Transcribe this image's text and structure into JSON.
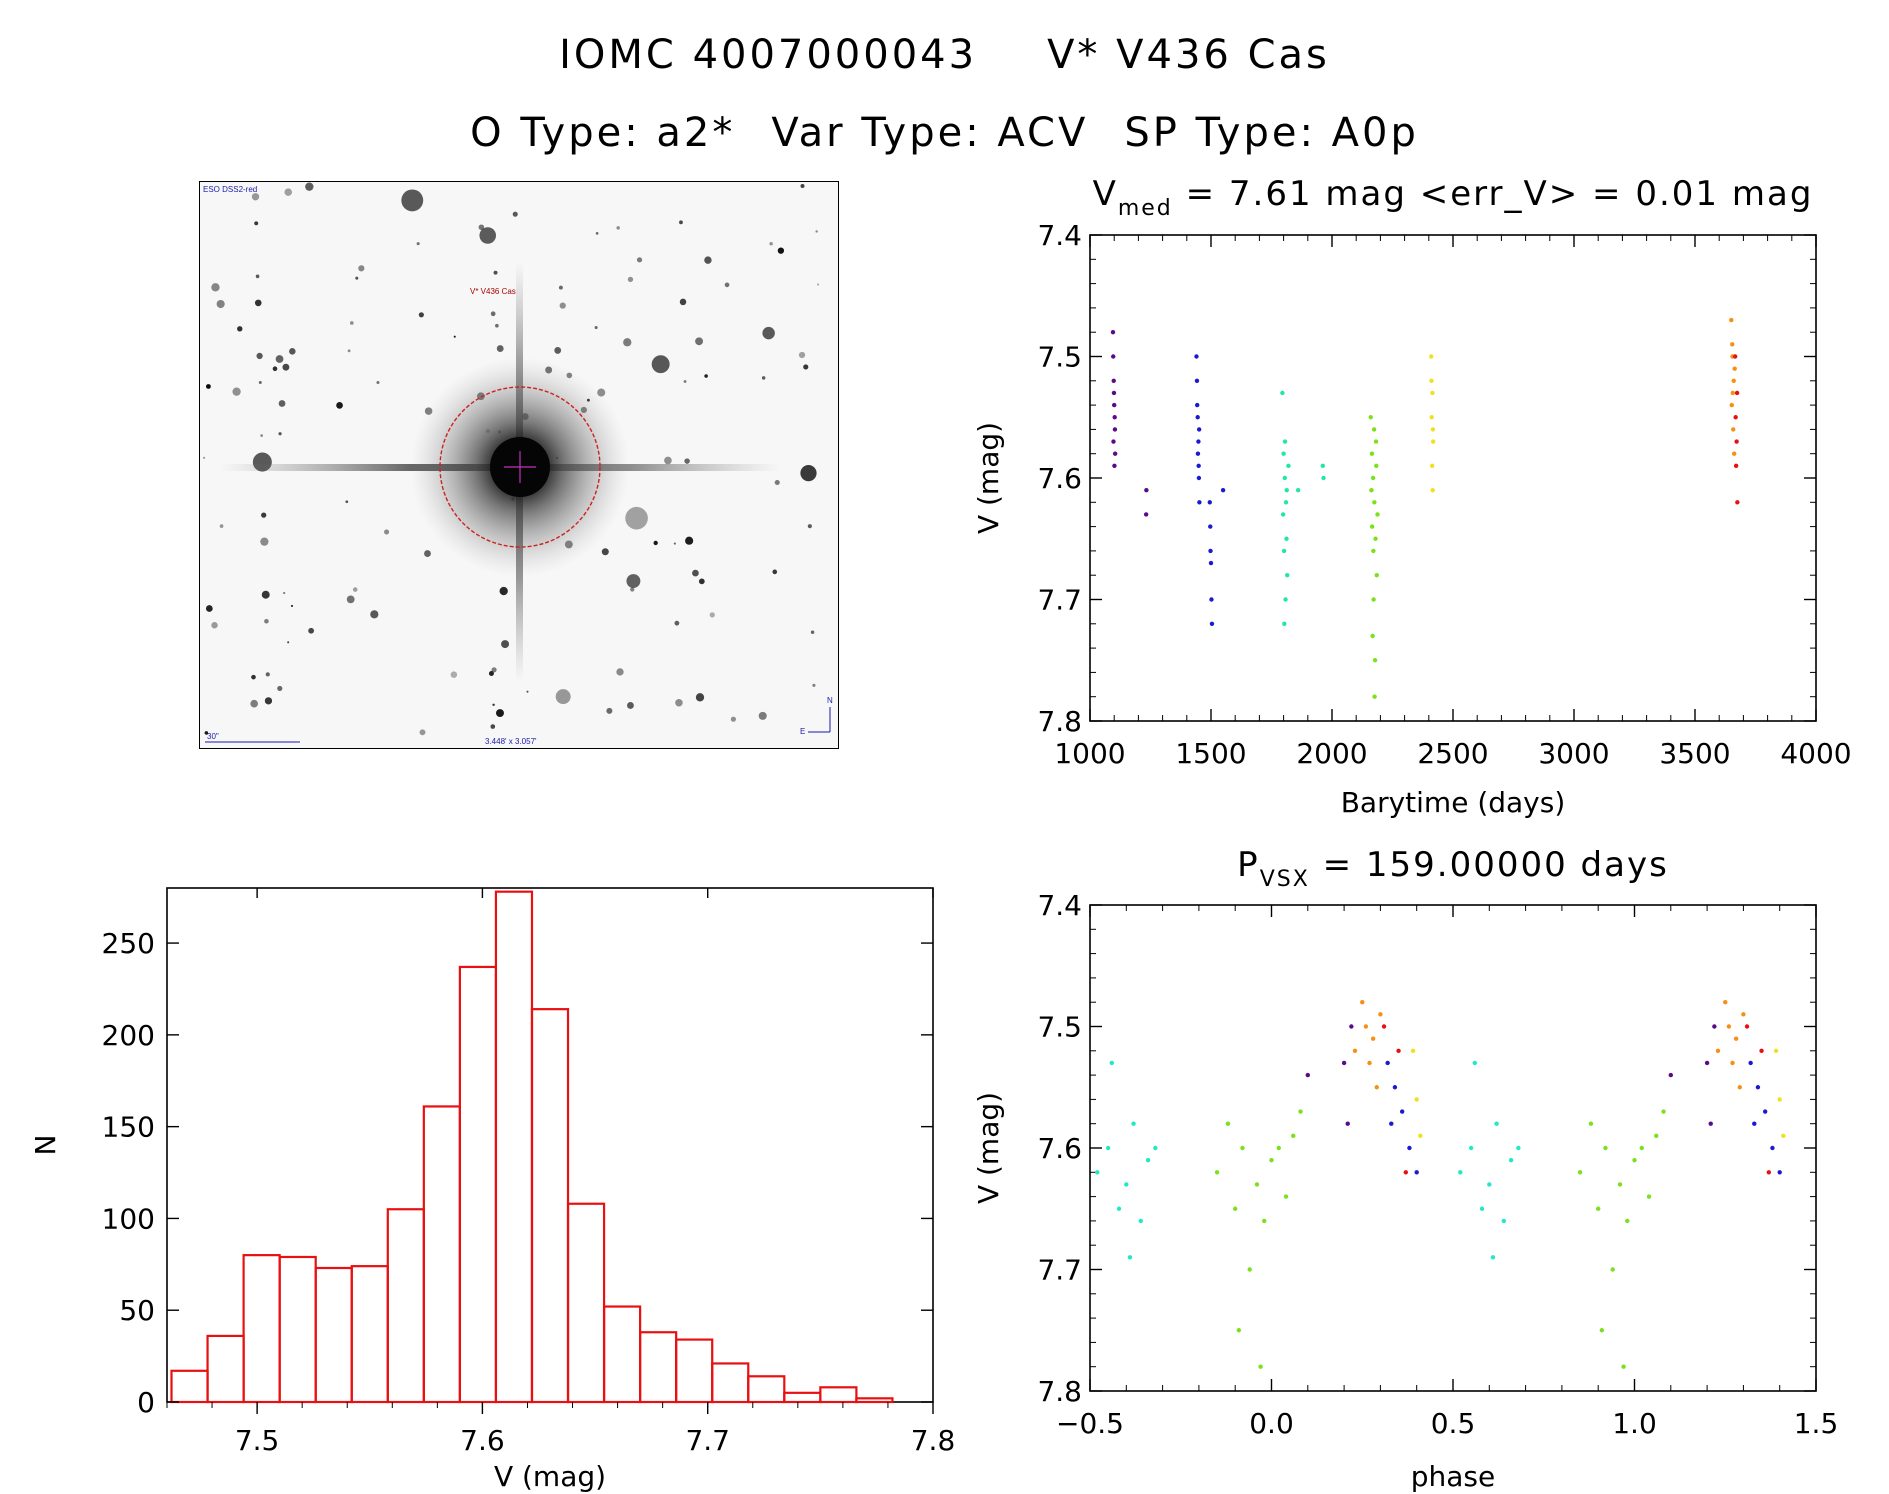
{
  "header": {
    "line1_left": "IOMC 4007000043",
    "line1_right": "V* V436 Cas",
    "otype": "O Type: a2*",
    "vartype": "Var Type: ACV",
    "sptype": "SP Type: A0p"
  },
  "finder": {
    "survey": "ESO DSS2-red",
    "object_label": "V* V436 Cas",
    "scale_label": "30\"",
    "fov_label": "3.448' x 3.057'",
    "compass_n": "N",
    "compass_e": "E",
    "colors": {
      "circle": "#cc2222",
      "label": "#aa0000",
      "text": "#1a1aaa"
    }
  },
  "chart_data": [
    {
      "id": "lightcurve",
      "type": "scatter",
      "title_main": "V",
      "title_sub": "med",
      "title_rest": " = 7.61 mag <err_V> = 0.01 mag",
      "xlabel": "Barytime (days)",
      "ylabel": "V (mag)",
      "xlim": [
        1000,
        4000
      ],
      "ylim": [
        7.8,
        7.4
      ],
      "xticks": [
        1000,
        1500,
        2000,
        2500,
        3000,
        3500,
        4000
      ],
      "xticklabels": [
        "1000",
        "1500",
        "2000",
        "2500",
        "3000",
        "3500",
        "4000"
      ],
      "yticks": [
        7.4,
        7.5,
        7.6,
        7.7,
        7.8
      ],
      "yticklabels": [
        "7.4",
        "7.5",
        "7.6",
        "7.7",
        "7.8"
      ],
      "series": [
        {
          "color": "#5a0a8a",
          "points": [
            [
              1095,
              7.48
            ],
            [
              1098,
              7.52
            ],
            [
              1100,
              7.54
            ],
            [
              1102,
              7.55
            ],
            [
              1097,
              7.57
            ],
            [
              1101,
              7.59
            ],
            [
              1099,
              7.53
            ],
            [
              1103,
              7.56
            ],
            [
              1096,
              7.5
            ],
            [
              1104,
              7.58
            ],
            [
              1233,
              7.61
            ],
            [
              1232,
              7.63
            ]
          ]
        },
        {
          "color": "#1a1ad0",
          "points": [
            [
              1440,
              7.5
            ],
            [
              1442,
              7.52
            ],
            [
              1445,
              7.55
            ],
            [
              1448,
              7.57
            ],
            [
              1450,
              7.6
            ],
            [
              1452,
              7.62
            ],
            [
              1446,
              7.58
            ],
            [
              1443,
              7.54
            ],
            [
              1449,
              7.59
            ],
            [
              1451,
              7.56
            ],
            [
              1495,
              7.62
            ],
            [
              1497,
              7.64
            ],
            [
              1500,
              7.67
            ],
            [
              1502,
              7.7
            ],
            [
              1504,
              7.72
            ],
            [
              1498,
              7.66
            ],
            [
              1550,
              7.61
            ]
          ]
        },
        {
          "color": "#20e8a0",
          "points": [
            [
              1795,
              7.53
            ],
            [
              1800,
              7.58
            ],
            [
              1805,
              7.6
            ],
            [
              1810,
              7.62
            ],
            [
              1812,
              7.65
            ],
            [
              1815,
              7.68
            ],
            [
              1808,
              7.7
            ],
            [
              1803,
              7.72
            ],
            [
              1798,
              7.63
            ],
            [
              1806,
              7.57
            ],
            [
              1813,
              7.61
            ],
            [
              1820,
              7.59
            ],
            [
              1802,
              7.66
            ],
            [
              1860,
              7.61
            ],
            [
              1962,
              7.59
            ],
            [
              1965,
              7.6
            ]
          ]
        },
        {
          "color": "#7ce01a",
          "points": [
            [
              2160,
              7.55
            ],
            [
              2165,
              7.58
            ],
            [
              2170,
              7.6
            ],
            [
              2175,
              7.62
            ],
            [
              2180,
              7.65
            ],
            [
              2185,
              7.68
            ],
            [
              2172,
              7.7
            ],
            [
              2168,
              7.73
            ],
            [
              2178,
              7.75
            ],
            [
              2176,
              7.78
            ],
            [
              2182,
              7.57
            ],
            [
              2163,
              7.61
            ],
            [
              2188,
              7.63
            ],
            [
              2171,
              7.66
            ],
            [
              2183,
              7.59
            ],
            [
              2166,
              7.64
            ],
            [
              2174,
              7.56
            ]
          ]
        },
        {
          "color": "#f0e020",
          "points": [
            [
              2410,
              7.5
            ],
            [
              2415,
              7.53
            ],
            [
              2412,
              7.55
            ],
            [
              2418,
              7.57
            ],
            [
              2414,
              7.59
            ],
            [
              2416,
              7.61
            ],
            [
              2411,
              7.52
            ],
            [
              2417,
              7.56
            ]
          ]
        },
        {
          "color": "#f59010",
          "points": [
            [
              3650,
              7.47
            ],
            [
              3655,
              7.5
            ],
            [
              3660,
              7.52
            ],
            [
              3652,
              7.54
            ],
            [
              3658,
              7.56
            ],
            [
              3662,
              7.58
            ],
            [
              3654,
              7.49
            ],
            [
              3664,
              7.51
            ],
            [
              3656,
              7.53
            ]
          ]
        },
        {
          "color": "#e81010",
          "points": [
            [
              3668,
              7.55
            ],
            [
              3672,
              7.57
            ],
            [
              3670,
              7.59
            ],
            [
              3675,
              7.62
            ],
            [
              3666,
              7.5
            ],
            [
              3674,
              7.53
            ]
          ]
        }
      ]
    },
    {
      "id": "histogram",
      "type": "bar",
      "xlabel": "V (mag)",
      "ylabel": "N",
      "xlim": [
        7.46,
        7.8
      ],
      "ylim": [
        0,
        280
      ],
      "xticks": [
        7.5,
        7.6,
        7.7,
        7.8
      ],
      "xticklabels": [
        "7.5",
        "7.6",
        "7.7",
        "7.8"
      ],
      "yticks": [
        0,
        50,
        100,
        150,
        200,
        250
      ],
      "yticklabels": [
        "0",
        "50",
        "100",
        "150",
        "200",
        "250"
      ],
      "bin_width": 0.016,
      "bin_starts": [
        7.462,
        7.478,
        7.494,
        7.51,
        7.526,
        7.542,
        7.558,
        7.574,
        7.59,
        7.606,
        7.622,
        7.638,
        7.654,
        7.67,
        7.686,
        7.702,
        7.718,
        7.734,
        7.75,
        7.766
      ],
      "values": [
        17,
        36,
        80,
        79,
        73,
        74,
        105,
        161,
        237,
        278,
        214,
        108,
        52,
        38,
        34,
        21,
        14,
        5,
        8,
        2
      ],
      "edge_color": "#e81010"
    },
    {
      "id": "phased",
      "type": "scatter",
      "title_main": "P",
      "title_sub": "VSX",
      "title_rest": " = 159.00000 days",
      "xlabel": "phase",
      "ylabel": "V (mag)",
      "xlim": [
        -0.5,
        1.5
      ],
      "ylim": [
        7.8,
        7.4
      ],
      "xticks": [
        -0.5,
        0.0,
        0.5,
        1.0,
        1.5
      ],
      "xticklabels": [
        "−0.5",
        "0.0",
        "0.5",
        "1.0",
        "1.5"
      ],
      "yticks": [
        7.4,
        7.5,
        7.6,
        7.7,
        7.8
      ],
      "yticklabels": [
        "7.4",
        "7.5",
        "7.6",
        "7.7",
        "7.8"
      ],
      "series": [
        {
          "color": "#20e8c8",
          "points": [
            [
              -0.48,
              7.62
            ],
            [
              -0.45,
              7.6
            ],
            [
              -0.42,
              7.65
            ],
            [
              -0.4,
              7.63
            ],
            [
              -0.38,
              7.58
            ],
            [
              -0.36,
              7.66
            ],
            [
              -0.34,
              7.61
            ],
            [
              -0.32,
              7.6
            ],
            [
              -0.44,
              7.53
            ],
            [
              -0.39,
              7.69
            ],
            [
              0.52,
              7.62
            ],
            [
              0.55,
              7.6
            ],
            [
              0.58,
              7.65
            ],
            [
              0.6,
              7.63
            ],
            [
              0.62,
              7.58
            ],
            [
              0.64,
              7.66
            ],
            [
              0.66,
              7.61
            ],
            [
              0.68,
              7.6
            ],
            [
              0.56,
              7.53
            ],
            [
              0.61,
              7.69
            ]
          ]
        },
        {
          "color": "#7ce01a",
          "points": [
            [
              -0.15,
              7.62
            ],
            [
              -0.12,
              7.58
            ],
            [
              -0.1,
              7.65
            ],
            [
              -0.08,
              7.6
            ],
            [
              -0.06,
              7.7
            ],
            [
              -0.04,
              7.63
            ],
            [
              -0.02,
              7.66
            ],
            [
              0.0,
              7.61
            ],
            [
              0.02,
              7.6
            ],
            [
              0.04,
              7.64
            ],
            [
              0.06,
              7.59
            ],
            [
              0.08,
              7.57
            ],
            [
              -0.09,
              7.75
            ],
            [
              -0.03,
              7.78
            ],
            [
              0.85,
              7.62
            ],
            [
              0.88,
              7.58
            ],
            [
              0.9,
              7.65
            ],
            [
              0.92,
              7.6
            ],
            [
              0.94,
              7.7
            ],
            [
              0.96,
              7.63
            ],
            [
              0.98,
              7.66
            ],
            [
              1.0,
              7.61
            ],
            [
              1.02,
              7.6
            ],
            [
              1.04,
              7.64
            ],
            [
              1.06,
              7.59
            ],
            [
              1.08,
              7.57
            ],
            [
              0.91,
              7.75
            ],
            [
              0.97,
              7.78
            ]
          ]
        },
        {
          "color": "#5a0a8a",
          "points": [
            [
              0.2,
              7.53
            ],
            [
              0.21,
              7.58
            ],
            [
              0.22,
              7.5
            ],
            [
              0.1,
              7.54
            ],
            [
              1.2,
              7.53
            ],
            [
              1.21,
              7.58
            ],
            [
              1.22,
              7.5
            ],
            [
              1.1,
              7.54
            ]
          ]
        },
        {
          "color": "#f59010",
          "points": [
            [
              0.23,
              7.52
            ],
            [
              0.25,
              7.48
            ],
            [
              0.26,
              7.5
            ],
            [
              0.27,
              7.53
            ],
            [
              0.28,
              7.51
            ],
            [
              0.29,
              7.55
            ],
            [
              0.3,
              7.49
            ],
            [
              1.23,
              7.52
            ],
            [
              1.25,
              7.48
            ],
            [
              1.26,
              7.5
            ],
            [
              1.27,
              7.53
            ],
            [
              1.28,
              7.51
            ],
            [
              1.29,
              7.55
            ],
            [
              1.3,
              7.49
            ]
          ]
        },
        {
          "color": "#1a1ad0",
          "points": [
            [
              0.32,
              7.53
            ],
            [
              0.34,
              7.55
            ],
            [
              0.36,
              7.57
            ],
            [
              0.38,
              7.6
            ],
            [
              0.4,
              7.62
            ],
            [
              0.33,
              7.58
            ],
            [
              1.32,
              7.53
            ],
            [
              1.34,
              7.55
            ],
            [
              1.36,
              7.57
            ],
            [
              1.38,
              7.6
            ],
            [
              1.4,
              7.62
            ],
            [
              1.33,
              7.58
            ]
          ]
        },
        {
          "color": "#e81010",
          "points": [
            [
              0.31,
              7.5
            ],
            [
              0.35,
              7.52
            ],
            [
              0.37,
              7.62
            ],
            [
              1.31,
              7.5
            ],
            [
              1.35,
              7.52
            ],
            [
              1.37,
              7.62
            ]
          ]
        },
        {
          "color": "#f0e020",
          "points": [
            [
              0.39,
              7.52
            ],
            [
              0.4,
              7.56
            ],
            [
              0.41,
              7.59
            ],
            [
              1.39,
              7.52
            ],
            [
              1.4,
              7.56
            ],
            [
              1.41,
              7.59
            ]
          ]
        }
      ]
    }
  ]
}
